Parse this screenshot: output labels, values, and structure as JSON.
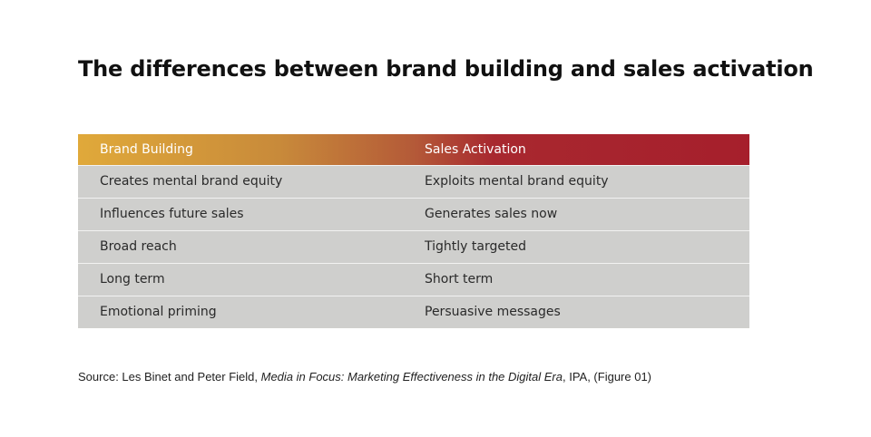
{
  "title": "The differences between brand building and sales activation",
  "table": {
    "headers": [
      "Brand Building",
      "Sales Activation"
    ],
    "rows": [
      [
        "Creates mental brand equity",
        "Exploits mental brand equity"
      ],
      [
        "Influences future sales",
        "Generates sales now"
      ],
      [
        "Broad reach",
        "Tightly targeted"
      ],
      [
        "Long term",
        "Short term"
      ],
      [
        "Emotional priming",
        "Persuasive messages"
      ]
    ]
  },
  "source": {
    "prefix": "Source: Les Binet and Peter Field, ",
    "publication": "Media in Focus: Marketing Effectiveness in the Digital Era",
    "suffix": ", IPA, (Figure 01)"
  }
}
